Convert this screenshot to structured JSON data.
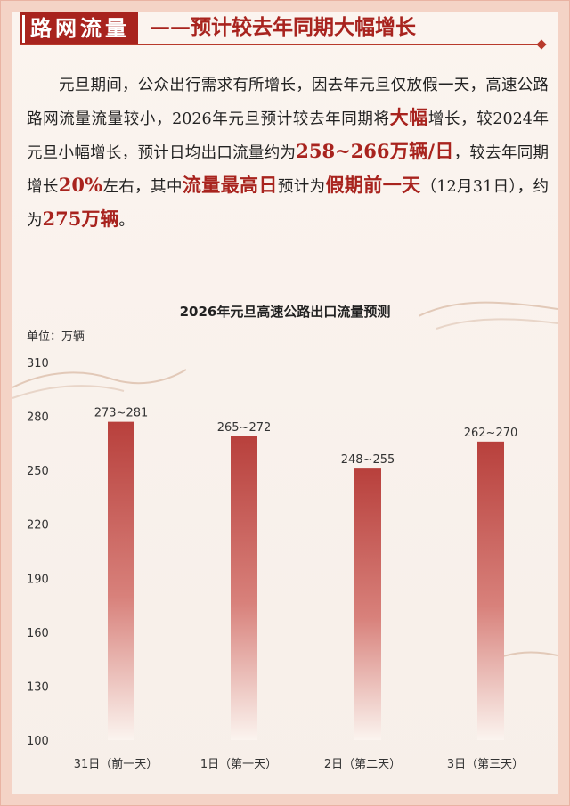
{
  "header": {
    "tag": "路网流量",
    "subtitle": "——预计较去年同期大幅增长"
  },
  "paragraph": {
    "s1": "元旦期间，公众出行需求有所增长，因去年元旦仅放假一天，高速公路路网流量流量较小，2026年元旦预计较去年同期将",
    "h1": "大幅",
    "s2": "增长，较2024年元旦小幅增长，预计日均出口流量约为",
    "h2": "258~266万辆/日",
    "s3": "，较去年同期增长",
    "h3": "20%",
    "s4": "左右，其中",
    "h4": "流量最高日",
    "s5": "预计为",
    "h5": "假期前一天",
    "s6": "（12月31日），约为",
    "h6": "275万辆",
    "s7": "。"
  },
  "colors": {
    "accent": "#a8231e",
    "bar_top": "#b8403c",
    "bar_bottom": "#fbf4ef"
  },
  "chart_data": {
    "type": "bar",
    "title": "2026年元旦高速公路出口流量预测",
    "unit_label": "单位：万辆",
    "categories": [
      "31日（前一天）",
      "1日（第一天）",
      "2日（第二天）",
      "3日（第三天）"
    ],
    "ranges": [
      [
        273,
        281
      ],
      [
        265,
        272
      ],
      [
        248,
        255
      ],
      [
        262,
        270
      ]
    ],
    "data_labels": [
      "273~281",
      "265~272",
      "248~255",
      "262~270"
    ],
    "values": [
      277,
      269,
      251,
      266
    ],
    "ylim": [
      100,
      310
    ],
    "yticks": [
      100,
      130,
      160,
      190,
      220,
      250,
      280,
      310
    ],
    "grid": false,
    "legend": "none"
  }
}
